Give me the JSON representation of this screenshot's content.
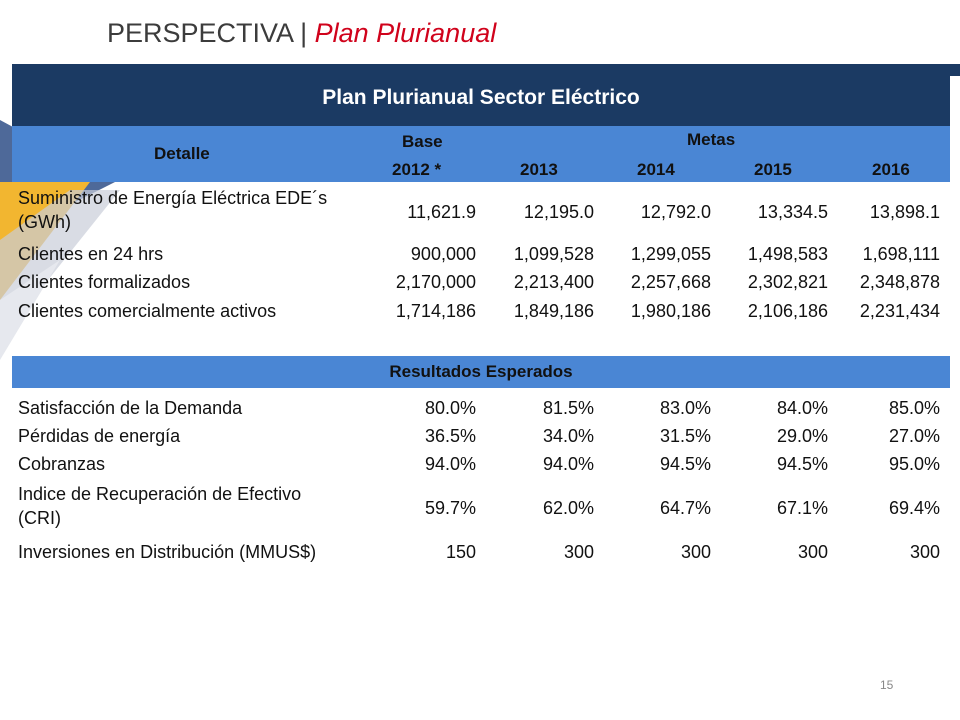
{
  "slide": {
    "title_main": "PERSPECTIVA",
    "title_sep": "|",
    "title_sub": "Plan Plurianual",
    "page_number": "15"
  },
  "table": {
    "banner": "Plan Plurianual Sector Eléctrico",
    "header": {
      "detalle": "Detalle",
      "base": "Base",
      "metas": "Metas",
      "years": [
        "2012 *",
        "2013",
        "2014",
        "2015",
        "2016"
      ]
    },
    "rows": [
      {
        "label_l1": "Suministro de Energía Eléctrica EDE´s",
        "label_l2": "(GWh)",
        "values": [
          "11,621.9",
          "12,195.0",
          "12,792.0",
          "13,334.5",
          "13,898.1"
        ]
      },
      {
        "label_l1": "Clientes en 24 hrs",
        "values": [
          "900,000",
          "1,099,528",
          "1,299,055",
          "1,498,583",
          "1,698,111"
        ]
      },
      {
        "label_l1": "Clientes formalizados",
        "values": [
          "2,170,000",
          "2,213,400",
          "2,257,668",
          "2,302,821",
          "2,348,878"
        ]
      },
      {
        "label_l1": "Clientes comercialmente activos",
        "values": [
          "1,714,186",
          "1,849,186",
          "1,980,186",
          "2,106,186",
          "2,231,434"
        ]
      }
    ],
    "section2_title": "Resultados Esperados",
    "rows2": [
      {
        "label_l1": "Satisfacción de la Demanda",
        "values": [
          "80.0%",
          "81.5%",
          "83.0%",
          "84.0%",
          "85.0%"
        ]
      },
      {
        "label_l1": "Pérdidas de energía",
        "values": [
          "36.5%",
          "34.0%",
          "31.5%",
          "29.0%",
          "27.0%"
        ]
      },
      {
        "label_l1": "Cobranzas",
        "values": [
          "94.0%",
          "94.0%",
          "94.5%",
          "94.5%",
          "95.0%"
        ]
      },
      {
        "label_l1": "Indice de Recuperación de Efectivo",
        "label_l2": "(CRI)",
        "values": [
          "59.7%",
          "62.0%",
          "64.7%",
          "67.1%",
          "69.4%"
        ]
      },
      {
        "label_l1": "Inversiones en Distribución (MMUS$)",
        "values": [
          "150",
          "300",
          "300",
          "300",
          "300"
        ]
      }
    ]
  },
  "colors": {
    "banner": "#1b3a63",
    "subheader": "#4a86d4",
    "title_accent": "#d0021b"
  }
}
